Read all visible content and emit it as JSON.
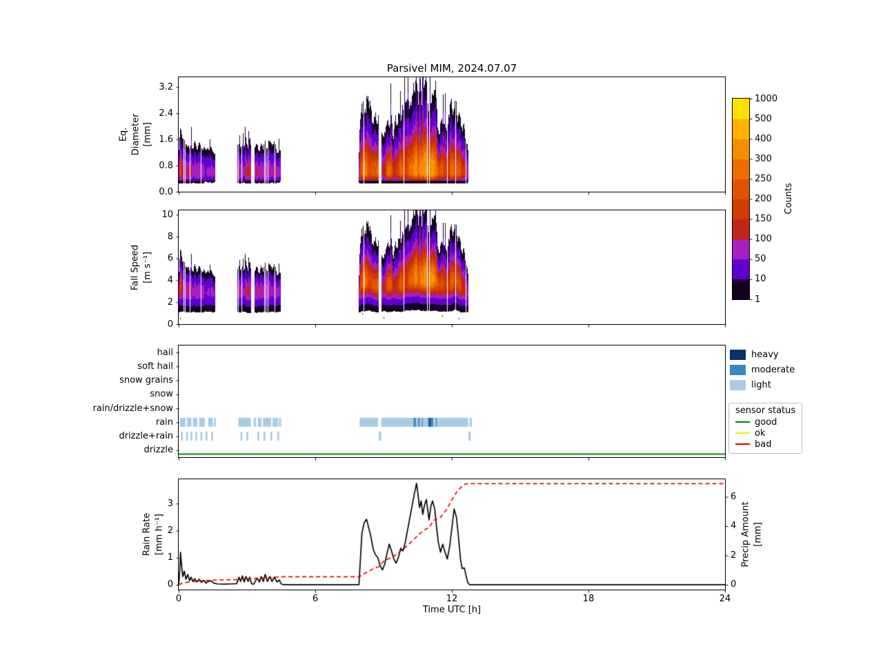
{
  "title": "Parsivel MIM, 2024.07.07",
  "colorbar": {
    "label": "Counts",
    "boundaries": [
      1,
      10,
      50,
      100,
      150,
      200,
      250,
      300,
      400,
      500,
      1000
    ],
    "tick_labels": [
      "1",
      "10",
      "50",
      "100",
      "150",
      "200",
      "250",
      "300",
      "400",
      "500",
      "1000"
    ],
    "colors": [
      "#130020",
      "#5e00cf",
      "#a81ec0",
      "#c22517",
      "#d23a00",
      "#e15200",
      "#ec6c00",
      "#f68d00",
      "#fcb100",
      "#ffe100"
    ]
  },
  "panels": {
    "diameter": {
      "ylabel": "Eq.\nDiameter\n[mm]",
      "ylim": [
        0,
        3.5
      ],
      "yticks": [
        0.0,
        0.8,
        1.6,
        2.4,
        3.2
      ],
      "ytick_labels": [
        "0.0",
        "0.8",
        "1.6",
        "2.4",
        "3.2"
      ]
    },
    "fallspeed": {
      "ylabel": "Fall Speed\n[m s⁻¹]",
      "ylim": [
        0,
        10.4
      ],
      "yticks": [
        0,
        2,
        4,
        6,
        8,
        10
      ],
      "ytick_labels": [
        "0",
        "2",
        "4",
        "6",
        "8",
        "10"
      ]
    },
    "precip_type": {
      "categories_top_to_bottom": [
        "hail",
        "soft hail",
        "snow grains",
        "snow",
        "rain/drizzle+snow",
        "rain",
        "drizzle+rain",
        "drizzle"
      ]
    },
    "rate": {
      "ylabel": "Rain Rate\n[mm h⁻¹]",
      "ylim": [
        -0.18,
        3.9
      ],
      "yticks": [
        0,
        1,
        2,
        3
      ],
      "ytick_labels": [
        "0",
        "1",
        "2",
        "3"
      ],
      "right_ylabel": "Precip Amount\n[mm]",
      "right_ylim": [
        -0.33,
        7.2
      ],
      "right_yticks": [
        0,
        2,
        4,
        6
      ],
      "right_ytick_labels": [
        "0",
        "2",
        "4",
        "6"
      ]
    }
  },
  "xaxis": {
    "label": "Time UTC [h]",
    "lim": [
      0,
      24
    ],
    "ticks": [
      0,
      6,
      12,
      18,
      24
    ],
    "tick_labels": [
      "0",
      "6",
      "12",
      "18",
      "24"
    ]
  },
  "legend_intensity": {
    "items": [
      {
        "label": "heavy",
        "color": "#08306b"
      },
      {
        "label": "moderate",
        "color": "#3a87c2"
      },
      {
        "label": "light",
        "color": "#a8cce4"
      }
    ]
  },
  "legend_status": {
    "title": "sensor status",
    "items": [
      {
        "label": "good",
        "color": "#008000"
      },
      {
        "label": "ok",
        "color": "#f0f000"
      },
      {
        "label": "bad",
        "color": "#e60000"
      }
    ]
  },
  "chart_data": [
    {
      "id": "eq_diameter_spectrogram",
      "type": "heatmap",
      "title": "Parsivel MIM, 2024.07.07",
      "ylabel": "Eq. Diameter [mm]",
      "ylim": [
        0,
        3.5
      ],
      "x_range_hours": [
        0,
        24
      ],
      "counts_boundaries": [
        1,
        10,
        50,
        100,
        150,
        200,
        250,
        300,
        400,
        500,
        1000
      ],
      "model": {
        "core_mm": 0.6,
        "min_mm": 0.27,
        "dark_below_mm": 0.34,
        "count_scale": 330,
        "width_base": 0.16,
        "width_gain": 0.8,
        "low_side_width": 0.24
      }
    },
    {
      "id": "fall_speed_spectrogram",
      "type": "heatmap",
      "ylabel": "Fall Speed [m s-1]",
      "ylim": [
        0,
        10.4
      ],
      "x_range_hours": [
        0,
        24
      ],
      "counts_boundaries": [
        1,
        10,
        50,
        100,
        150,
        200,
        250,
        300,
        400,
        500,
        1000
      ],
      "model": {
        "center_base": 2.6,
        "center_gain": 1.6,
        "count_scale": 300,
        "top_width_base": 0.5,
        "top_width_gain": 1.8,
        "bottom_width_base": 0.8,
        "bottom_width_gain": 0.4,
        "min_ms": 0.95
      }
    },
    {
      "id": "spectro_envelope",
      "type": "line",
      "note": "intensity envelope derived from rain rate",
      "rain_threshold_mm_h": 0.05,
      "envelope_exponent": 0.45,
      "envelope_ref_rate": 3.75,
      "noise_seed": 42,
      "gaps_h": [
        [
          8.78,
          8.92
        ]
      ]
    },
    {
      "id": "precip_type_timeline",
      "type": "bar",
      "categories_top_to_bottom": [
        "hail",
        "soft hail",
        "snow grains",
        "snow",
        "rain/drizzle+snow",
        "rain",
        "drizzle+rain",
        "drizzle"
      ],
      "rows": [
        {
          "category": "rain",
          "index": 5,
          "classes": {
            "light": [
              [
                0.05,
                0.3
              ],
              [
                0.36,
                0.56
              ],
              [
                0.62,
                0.82
              ],
              [
                0.9,
                1.15
              ],
              [
                1.3,
                1.5
              ],
              [
                1.55,
                1.63
              ],
              [
                2.62,
                3.17
              ],
              [
                3.3,
                3.4
              ],
              [
                3.48,
                3.64
              ],
              [
                3.7,
                4.06
              ],
              [
                4.12,
                4.36
              ],
              [
                4.4,
                4.5
              ],
              [
                7.95,
                8.76
              ],
              [
                8.9,
                12.72
              ],
              [
                12.78,
                12.88
              ]
            ],
            "moderate": [
              [
                10.32,
                10.42
              ],
              [
                10.52,
                10.58
              ],
              [
                10.68,
                10.72
              ],
              [
                10.95,
                11.18
              ],
              [
                11.3,
                11.34
              ]
            ],
            "heavy": [
              [
                11.02,
                11.06
              ]
            ]
          }
        },
        {
          "category": "drizzle+rain",
          "index": 6,
          "classes": {
            "light": [
              [
                0.1,
                0.18
              ],
              [
                0.33,
                0.41
              ],
              [
                0.52,
                0.6
              ],
              [
                0.73,
                0.81
              ],
              [
                0.96,
                1.04
              ],
              [
                1.18,
                1.26
              ],
              [
                1.43,
                1.51
              ],
              [
                2.72,
                2.8
              ],
              [
                2.98,
                3.06
              ],
              [
                3.46,
                3.54
              ],
              [
                3.73,
                3.81
              ],
              [
                4.03,
                4.11
              ],
              [
                4.33,
                4.41
              ],
              [
                8.79,
                8.9
              ],
              [
                12.73,
                12.83
              ]
            ]
          }
        }
      ],
      "sensor_status": {
        "status": "good",
        "color": "#008000",
        "span_hours": [
          0,
          24
        ]
      }
    },
    {
      "id": "rain_rate",
      "type": "line",
      "ylabel": "Rain Rate [mm h-1]",
      "color": "#000000",
      "style": "solid",
      "points": [
        [
          0,
          0
        ],
        [
          0.05,
          0.55
        ],
        [
          0.08,
          1.2
        ],
        [
          0.12,
          0.8
        ],
        [
          0.18,
          0.3
        ],
        [
          0.25,
          0.5
        ],
        [
          0.32,
          0.2
        ],
        [
          0.4,
          0.38
        ],
        [
          0.48,
          0.15
        ],
        [
          0.55,
          0.28
        ],
        [
          0.62,
          0.12
        ],
        [
          0.7,
          0.22
        ],
        [
          0.8,
          0.1
        ],
        [
          0.9,
          0.2
        ],
        [
          1.0,
          0.09
        ],
        [
          1.1,
          0.16
        ],
        [
          1.2,
          0.06
        ],
        [
          1.3,
          0.12
        ],
        [
          1.42,
          0.14
        ],
        [
          1.55,
          0.06
        ],
        [
          1.7,
          0.03
        ],
        [
          2.0,
          0.02
        ],
        [
          2.3,
          0.03
        ],
        [
          2.55,
          0.04
        ],
        [
          2.65,
          0.28
        ],
        [
          2.72,
          0.12
        ],
        [
          2.8,
          0.33
        ],
        [
          2.88,
          0.1
        ],
        [
          2.95,
          0.3
        ],
        [
          3.05,
          0.12
        ],
        [
          3.12,
          0.28
        ],
        [
          3.2,
          0.04
        ],
        [
          3.3,
          0.02
        ],
        [
          3.45,
          0.25
        ],
        [
          3.55,
          0.1
        ],
        [
          3.62,
          0.3
        ],
        [
          3.72,
          0.12
        ],
        [
          3.8,
          0.38
        ],
        [
          3.9,
          0.12
        ],
        [
          4.0,
          0.3
        ],
        [
          4.1,
          0.12
        ],
        [
          4.2,
          0.28
        ],
        [
          4.32,
          0.1
        ],
        [
          4.42,
          0.18
        ],
        [
          4.5,
          0.03
        ],
        [
          4.6,
          0
        ],
        [
          7.92,
          0
        ],
        [
          7.98,
          0.9
        ],
        [
          8.05,
          1.9
        ],
        [
          8.15,
          2.3
        ],
        [
          8.25,
          2.42
        ],
        [
          8.35,
          2.1
        ],
        [
          8.45,
          1.75
        ],
        [
          8.55,
          1.3
        ],
        [
          8.65,
          1.1
        ],
        [
          8.75,
          1.0
        ],
        [
          8.85,
          0.7
        ],
        [
          8.95,
          0.55
        ],
        [
          9.05,
          0.75
        ],
        [
          9.15,
          1.15
        ],
        [
          9.25,
          1.5
        ],
        [
          9.35,
          1.25
        ],
        [
          9.45,
          0.95
        ],
        [
          9.55,
          0.8
        ],
        [
          9.65,
          1.0
        ],
        [
          9.75,
          1.35
        ],
        [
          9.85,
          1.25
        ],
        [
          9.95,
          1.55
        ],
        [
          10.05,
          2.0
        ],
        [
          10.15,
          2.45
        ],
        [
          10.25,
          2.9
        ],
        [
          10.35,
          3.35
        ],
        [
          10.45,
          3.75
        ],
        [
          10.52,
          3.3
        ],
        [
          10.58,
          2.85
        ],
        [
          10.65,
          3.1
        ],
        [
          10.72,
          2.6
        ],
        [
          10.8,
          2.95
        ],
        [
          10.88,
          3.15
        ],
        [
          10.95,
          2.7
        ],
        [
          11.0,
          2.4
        ],
        [
          11.08,
          2.9
        ],
        [
          11.15,
          3.1
        ],
        [
          11.25,
          2.8
        ],
        [
          11.32,
          2.2
        ],
        [
          11.4,
          1.6
        ],
        [
          11.5,
          1.2
        ],
        [
          11.6,
          1.5
        ],
        [
          11.7,
          1.2
        ],
        [
          11.8,
          0.95
        ],
        [
          11.9,
          1.4
        ],
        [
          12.0,
          2.1
        ],
        [
          12.1,
          2.8
        ],
        [
          12.2,
          2.5
        ],
        [
          12.3,
          1.7
        ],
        [
          12.38,
          0.95
        ],
        [
          12.45,
          0.6
        ],
        [
          12.55,
          0.62
        ],
        [
          12.62,
          0.35
        ],
        [
          12.7,
          0.08
        ],
        [
          12.78,
          0
        ],
        [
          24,
          0
        ]
      ]
    },
    {
      "id": "precip_amount",
      "type": "line",
      "ylabel": "Precip Amount [mm]",
      "color": "#e60000",
      "style": "dashed",
      "points": [
        [
          0,
          0
        ],
        [
          0.15,
          0.1
        ],
        [
          0.4,
          0.18
        ],
        [
          0.8,
          0.25
        ],
        [
          1.3,
          0.3
        ],
        [
          1.7,
          0.33
        ],
        [
          2.6,
          0.35
        ],
        [
          3.2,
          0.42
        ],
        [
          3.9,
          0.48
        ],
        [
          4.5,
          0.55
        ],
        [
          7.95,
          0.55
        ],
        [
          8.2,
          0.8
        ],
        [
          8.5,
          1.05
        ],
        [
          8.8,
          1.25
        ],
        [
          9.0,
          1.6
        ],
        [
          9.5,
          2.0
        ],
        [
          10.0,
          2.6
        ],
        [
          10.3,
          3.05
        ],
        [
          10.6,
          3.5
        ],
        [
          10.8,
          3.75
        ],
        [
          11.0,
          3.9
        ],
        [
          11.2,
          4.4
        ],
        [
          11.5,
          4.6
        ],
        [
          11.8,
          5.2
        ],
        [
          12.0,
          5.8
        ],
        [
          12.2,
          6.3
        ],
        [
          12.4,
          6.65
        ],
        [
          12.55,
          6.85
        ],
        [
          12.7,
          6.9
        ],
        [
          24,
          6.9
        ]
      ]
    }
  ]
}
